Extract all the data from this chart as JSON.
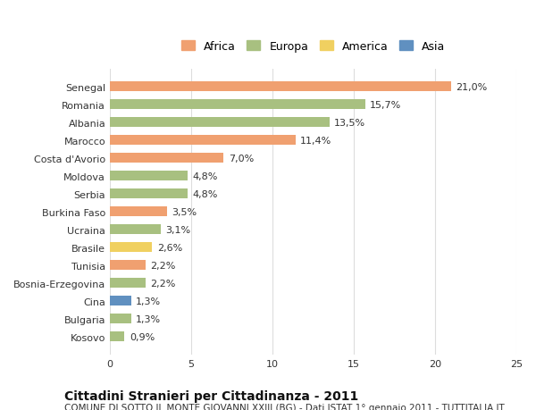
{
  "countries": [
    "Senegal",
    "Romania",
    "Albania",
    "Marocco",
    "Costa d'Avorio",
    "Moldova",
    "Serbia",
    "Burkina Faso",
    "Ucraina",
    "Brasile",
    "Tunisia",
    "Bosnia-Erzegovina",
    "Cina",
    "Bulgaria",
    "Kosovo"
  ],
  "values": [
    21.0,
    15.7,
    13.5,
    11.4,
    7.0,
    4.8,
    4.8,
    3.5,
    3.1,
    2.6,
    2.2,
    2.2,
    1.3,
    1.3,
    0.9
  ],
  "labels": [
    "21,0%",
    "15,7%",
    "13,5%",
    "11,4%",
    "7,0%",
    "4,8%",
    "4,8%",
    "3,5%",
    "3,1%",
    "2,6%",
    "2,2%",
    "2,2%",
    "1,3%",
    "1,3%",
    "0,9%"
  ],
  "continents": [
    "Africa",
    "Europa",
    "Europa",
    "Africa",
    "Africa",
    "Europa",
    "Europa",
    "Africa",
    "Europa",
    "America",
    "Africa",
    "Europa",
    "Asia",
    "Europa",
    "Europa"
  ],
  "continent_colors": {
    "Africa": "#F0A070",
    "Europa": "#A8C080",
    "America": "#F0D060",
    "Asia": "#6090C0"
  },
  "legend_order": [
    "Africa",
    "Europa",
    "America",
    "Asia"
  ],
  "xlim": [
    0,
    25
  ],
  "xlabel": "",
  "title": "Cittadini Stranieri per Cittadinanza - 2011",
  "subtitle": "COMUNE DI SOTTO IL MONTE GIOVANNI XXIII (BG) - Dati ISTAT 1° gennaio 2011 - TUTTITALIA.IT",
  "background_color": "#ffffff",
  "bar_height": 0.55,
  "grid_color": "#dddddd",
  "title_fontsize": 10,
  "subtitle_fontsize": 7.5,
  "label_fontsize": 8,
  "tick_fontsize": 8,
  "legend_fontsize": 9
}
